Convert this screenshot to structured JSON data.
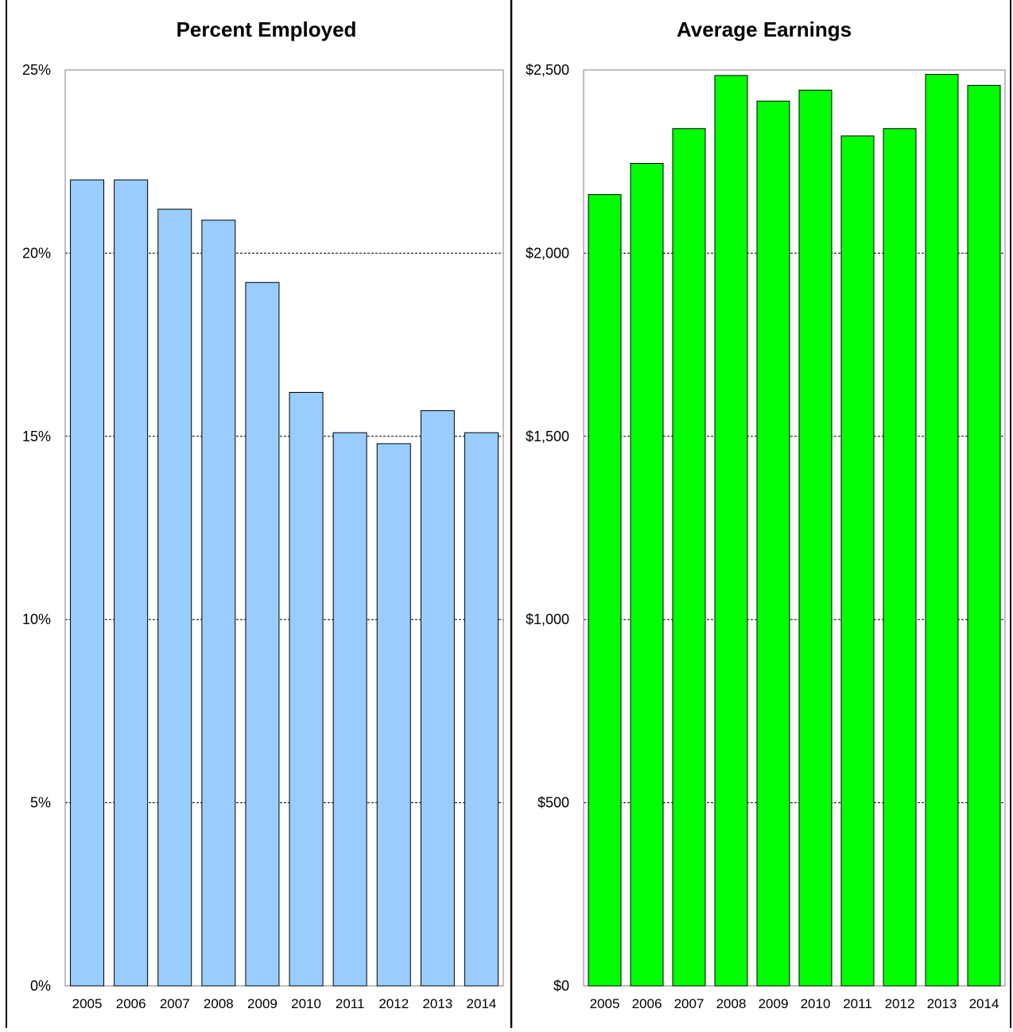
{
  "chart_data": [
    {
      "type": "bar",
      "title": "Percent Employed",
      "xlabel": "",
      "ylabel": "",
      "categories": [
        "2005",
        "2006",
        "2007",
        "2008",
        "2009",
        "2010",
        "2011",
        "2012",
        "2013",
        "2014"
      ],
      "values": [
        22.0,
        22.0,
        21.2,
        20.9,
        19.2,
        16.2,
        15.1,
        14.8,
        15.7,
        15.1
      ],
      "ylim": [
        0,
        25
      ],
      "yticks": [
        0,
        5,
        10,
        15,
        20,
        25
      ],
      "ytick_labels": [
        "0%",
        "5%",
        "10%",
        "15%",
        "20%",
        "25%"
      ],
      "grid": true,
      "bar_color": "#99ccff"
    },
    {
      "type": "bar",
      "title": "Average Earnings",
      "xlabel": "",
      "ylabel": "",
      "categories": [
        "2005",
        "2006",
        "2007",
        "2008",
        "2009",
        "2010",
        "2011",
        "2012",
        "2013",
        "2014"
      ],
      "values": [
        2160,
        2245,
        2340,
        2485,
        2415,
        2445,
        2320,
        2340,
        2488,
        2458
      ],
      "ylim": [
        0,
        2500
      ],
      "yticks": [
        0,
        500,
        1000,
        1500,
        2000,
        2500
      ],
      "ytick_labels": [
        "$0",
        "$500",
        "$1,000",
        "$1,500",
        "$2,000",
        "$2,500"
      ],
      "grid": true,
      "bar_color": "#00ff00"
    }
  ]
}
